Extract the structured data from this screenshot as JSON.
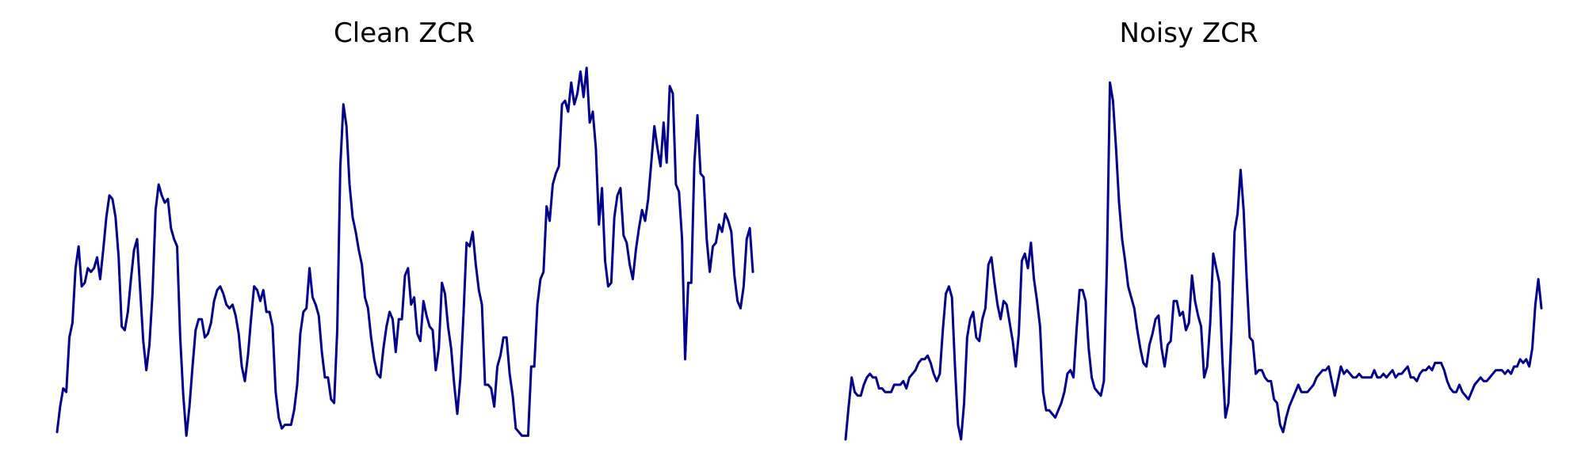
{
  "chart_data": [
    {
      "type": "line",
      "title": "Clean ZCR",
      "xlabel": "",
      "ylabel": "",
      "axes_visible": false,
      "grid": false,
      "ylim": [
        0,
        100
      ],
      "series": [
        {
          "color": "#00008b",
          "values": [
            2,
            9,
            14,
            13,
            28,
            32,
            47,
            53,
            42,
            43,
            47,
            46,
            47,
            50,
            44,
            52,
            61,
            67,
            66,
            61,
            50,
            31,
            30,
            35,
            44,
            52,
            55,
            41,
            27,
            19,
            26,
            40,
            63,
            70,
            67,
            65,
            66,
            58,
            55,
            53,
            28,
            12,
            1,
            9,
            20,
            30,
            33,
            33,
            28,
            29,
            32,
            38,
            41,
            42,
            40,
            37,
            36,
            37,
            34,
            29,
            20,
            16,
            23,
            33,
            42,
            41,
            38,
            41,
            35,
            35,
            31,
            13,
            6,
            3,
            4,
            4,
            4,
            8,
            15,
            29,
            35,
            36,
            47,
            39,
            37,
            34,
            24,
            17,
            17,
            11,
            10,
            30,
            75,
            92,
            86,
            70,
            61,
            57,
            52,
            48,
            39,
            36,
            28,
            22,
            18,
            17,
            25,
            31,
            35,
            33,
            24,
            33,
            33,
            45,
            47,
            37,
            39,
            29,
            27,
            38,
            34,
            31,
            30,
            19,
            25,
            43,
            40,
            31,
            25,
            15,
            7,
            17,
            34,
            54,
            53,
            57,
            48,
            41,
            37,
            15,
            15,
            14,
            9,
            20,
            23,
            28,
            28,
            18,
            12,
            3,
            2,
            1,
            1,
            1,
            20,
            20,
            37,
            44,
            46,
            64,
            60,
            70,
            73,
            75,
            92,
            93,
            90,
            98,
            92,
            95,
            101,
            94,
            102,
            87,
            90,
            80,
            59,
            69,
            49,
            42,
            43,
            61,
            67,
            69,
            56,
            54,
            48,
            44,
            52,
            58,
            63,
            60,
            66,
            76,
            86,
            80,
            75,
            87,
            76,
            97,
            95,
            70,
            68,
            55,
            22,
            43,
            43,
            76,
            89,
            73,
            72,
            55,
            46,
            53,
            54,
            59,
            57,
            62,
            60,
            57,
            45,
            38,
            36,
            42,
            55,
            58,
            46
          ]
        }
      ]
    },
    {
      "type": "line",
      "title": "Noisy ZCR",
      "xlabel": "",
      "ylabel": "",
      "axes_visible": false,
      "grid": false,
      "ylim": [
        0,
        100
      ],
      "series": [
        {
          "color": "#00008b",
          "values": [
            0,
            9,
            17,
            13,
            12,
            12,
            15,
            17,
            18,
            17,
            17,
            14,
            14,
            13,
            13,
            13,
            15,
            15,
            15,
            16,
            14,
            17,
            18,
            19,
            21,
            22,
            22,
            23,
            21,
            18,
            16,
            18,
            30,
            40,
            42,
            39,
            20,
            4,
            0,
            10,
            28,
            33,
            35,
            28,
            27,
            33,
            36,
            48,
            50,
            43,
            37,
            33,
            38,
            37,
            32,
            27,
            20,
            29,
            49,
            51,
            47,
            54,
            44,
            38,
            31,
            13,
            8,
            8,
            7,
            6,
            8,
            10,
            13,
            18,
            19,
            17,
            30,
            41,
            41,
            38,
            25,
            17,
            14,
            13,
            12,
            16,
            48,
            98,
            93,
            80,
            65,
            55,
            49,
            42,
            39,
            36,
            30,
            25,
            21,
            20,
            26,
            29,
            33,
            34,
            25,
            20,
            26,
            27,
            38,
            38,
            34,
            35,
            30,
            32,
            45,
            38,
            34,
            31,
            17,
            20,
            32,
            51,
            47,
            43,
            22,
            6,
            10,
            30,
            57,
            62,
            74,
            63,
            44,
            28,
            27,
            18,
            19,
            19,
            17,
            16,
            16,
            11,
            10,
            4,
            2,
            6,
            9,
            11,
            13,
            15,
            13,
            13,
            13,
            14,
            15,
            17,
            18,
            19,
            19,
            20,
            16,
            12,
            16,
            20,
            18,
            19,
            18,
            17,
            17,
            18,
            17,
            17,
            17,
            17,
            19,
            17,
            17,
            18,
            17,
            18,
            19,
            17,
            18,
            18,
            19,
            20,
            17,
            17,
            16,
            18,
            19,
            19,
            20,
            19,
            21,
            21,
            21,
            19,
            16,
            14,
            13,
            13,
            15,
            13,
            12,
            11,
            13,
            15,
            16,
            17,
            16,
            16,
            17,
            18,
            19,
            19,
            19,
            18,
            19,
            18,
            20,
            20,
            22,
            21,
            22,
            20,
            25,
            37,
            44,
            36
          ]
        }
      ]
    }
  ]
}
